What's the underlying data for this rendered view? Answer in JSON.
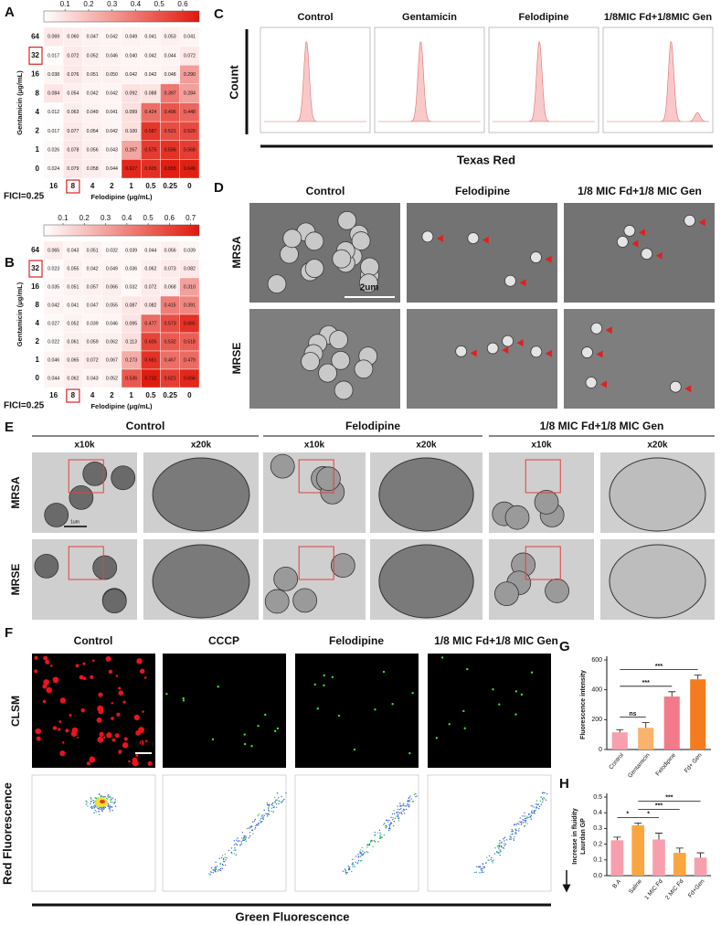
{
  "heatmaps": [
    {
      "letter": "A",
      "colorbar_ticks": [
        0.1,
        0.2,
        0.3,
        0.4,
        0.5,
        0.6
      ],
      "clim": [
        0.01,
        0.67
      ],
      "ylabel": "Gentamicin (μg/mL)",
      "xlabel": "Felodipine (μg/mL)",
      "note": "FICI=0.25",
      "rows": [
        64,
        32,
        16,
        8,
        4,
        2,
        1,
        0
      ],
      "cols": [
        16,
        8,
        4,
        2,
        1,
        0.5,
        0.25,
        0
      ],
      "highlight": {
        "row": 32,
        "col": 8
      },
      "cells": [
        [
          "0.069",
          "0.060",
          "0.047",
          "0.042",
          "0.049",
          "0.041",
          "0.053",
          "0.041"
        ],
        [
          "0.017",
          "0.072",
          "0.052",
          "0.046",
          "0.040",
          "0.042",
          "0.044",
          "0.072"
        ],
        [
          "0.038",
          "0.076",
          "0.051",
          "0.050",
          "0.042",
          "0.042",
          "0.048",
          "0.290"
        ],
        [
          "0.084",
          "0.054",
          "0.042",
          "0.042",
          "0.092",
          "0.088",
          "0.397",
          "0.284"
        ],
        [
          "0.012",
          "0.063",
          "0.049",
          "0.041",
          "0.099",
          "0.424",
          "0.496",
          "0.448"
        ],
        [
          "0.017",
          "0.077",
          "0.054",
          "0.042",
          "0.100",
          "0.587",
          "0.521",
          "0.529"
        ],
        [
          "0.026",
          "0.078",
          "0.056",
          "0.043",
          "0.267",
          "0.575",
          "0.596",
          "0.568"
        ],
        [
          "0.024",
          "0.079",
          "0.058",
          "0.044",
          "0.627",
          "0.605",
          "0.655",
          "0.649"
        ]
      ]
    },
    {
      "letter": "B",
      "colorbar_ticks": [
        0.1,
        0.2,
        0.3,
        0.4,
        0.5,
        0.6,
        0.7
      ],
      "clim": [
        0.01,
        0.74
      ],
      "ylabel": "Gentamicin (μg/mL)",
      "xlabel": "Felodipine (μg/mL)",
      "note": "FICI=0.25",
      "rows": [
        64,
        32,
        16,
        8,
        4,
        2,
        1,
        0
      ],
      "cols": [
        16,
        8,
        4,
        2,
        1,
        0.5,
        0.25,
        0
      ],
      "highlight": {
        "row": 32,
        "col": 8
      },
      "cells": [
        [
          "0.065",
          "0.043",
          "0.051",
          "0.032",
          "0.039",
          "0.044",
          "0.056",
          "0.039"
        ],
        [
          "0.023",
          "0.055",
          "0.042",
          "0.049",
          "0.036",
          "0.062",
          "0.073",
          "0.082"
        ],
        [
          "0.035",
          "0.051",
          "0.057",
          "0.066",
          "0.032",
          "0.072",
          "0.068",
          "0.310"
        ],
        [
          "0.042",
          "0.041",
          "0.047",
          "0.055",
          "0.087",
          "0.082",
          "0.415",
          "0.391"
        ],
        [
          "0.027",
          "0.052",
          "0.039",
          "0.046",
          "0.095",
          "0.477",
          "0.573",
          "0.665"
        ],
        [
          "0.022",
          "0.061",
          "0.059",
          "0.062",
          "0.113",
          "0.605",
          "0.532",
          "0.518"
        ],
        [
          "0.046",
          "0.065",
          "0.072",
          "0.067",
          "0.273",
          "0.661",
          "0.467",
          "0.479"
        ],
        [
          "0.044",
          "0.062",
          "0.043",
          "0.052",
          "0.536",
          "0.732",
          "0.621",
          "0.694"
        ]
      ]
    }
  ],
  "flow": {
    "letter": "C",
    "titles": [
      "Control",
      "Gentamicin",
      "Felodipine",
      "1/8MIC Fd+1/8MIC Gen"
    ],
    "ylabel": "Count",
    "xlabel": "Texas Red"
  },
  "sem": {
    "letter": "D",
    "titles": [
      "Control",
      "Felodipine",
      "1/8 MIC Fd+1/8 MIC Gen"
    ],
    "rows": [
      "MRSA",
      "MRSE"
    ],
    "scale": "2um"
  },
  "tem": {
    "letter": "E",
    "titles": [
      "Control",
      "Felodipine",
      "1/8 MIC Fd+1/8 MIC Gen"
    ],
    "magnifications": [
      "x10k",
      "x20k"
    ],
    "rows": [
      "MRSA",
      "MRSE"
    ],
    "scale": "1um"
  },
  "membrane": {
    "letter": "F",
    "titles": [
      "Control",
      "CCCP",
      "Felodipine",
      "1/8 MIC Fd+1/8 MIC Gen"
    ],
    "row": "CLSM",
    "scale": "5um",
    "ylabel": "Red Fluorescence",
    "xlabel": "Green Fluorescence"
  },
  "chart_data": [
    {
      "letter": "G",
      "type": "bar",
      "ylabel": [
        "Fluorescence intensity"
      ],
      "categories": [
        "Control",
        "Gentamicin",
        "Felodipine",
        "Fd+ Gen"
      ],
      "values": [
        115,
        145,
        355,
        470
      ],
      "errors": [
        18,
        35,
        32,
        28
      ],
      "colors": [
        "#f7a0ad",
        "#f9b36b",
        "#f27a8a",
        "#f47c1e"
      ],
      "ylim": [
        0,
        600
      ],
      "yticks": [
        0,
        200,
        400,
        600
      ],
      "comparisons": [
        {
          "groups": [
            "Control",
            "Gentamicin"
          ],
          "label": "ns"
        },
        {
          "groups": [
            "Control",
            "Felodipine"
          ],
          "label": "***"
        },
        {
          "groups": [
            "Control",
            "Fd+ Gen"
          ],
          "label": "***"
        }
      ]
    },
    {
      "letter": "H",
      "type": "bar",
      "ylabel": [
        "Increase in fluidity",
        "Laurdan GP"
      ],
      "categories": [
        "B.A",
        "Saline",
        "1 MIC Fd",
        "2 MIC Fd",
        "Fd+Gen"
      ],
      "values": [
        0.225,
        0.32,
        0.23,
        0.145,
        0.115
      ],
      "errors": [
        0.02,
        0.015,
        0.04,
        0.03,
        0.03
      ],
      "colors": [
        "#f7a0ad",
        "#f9a640",
        "#f7a0ad",
        "#f9a640",
        "#f7a0ad"
      ],
      "ylim": [
        0,
        0.5
      ],
      "yticks": [
        {
          "value": 0,
          "label": "0.0"
        },
        0.1,
        0.2,
        0.3,
        0.4,
        0.5
      ],
      "comparisons": [
        {
          "groups": [
            "B.A",
            "Saline"
          ],
          "label": "*"
        },
        {
          "groups": [
            "Saline",
            "1 MIC Fd"
          ],
          "label": "*"
        },
        {
          "groups": [
            "Saline",
            "2 MIC Fd"
          ],
          "label": "***"
        },
        {
          "groups": [
            "Saline",
            "Fd+Gen"
          ],
          "label": "***"
        }
      ]
    }
  ]
}
